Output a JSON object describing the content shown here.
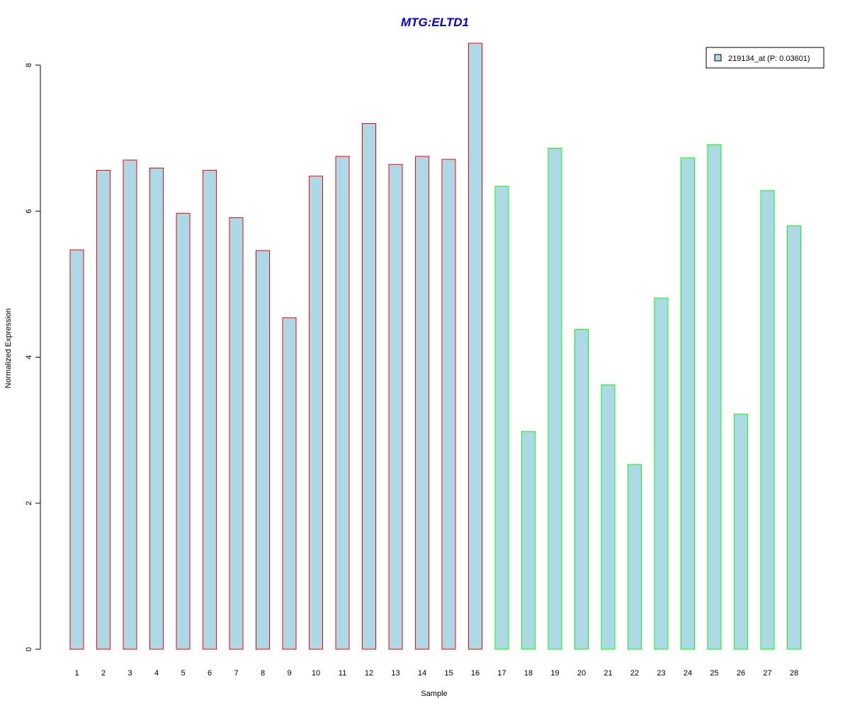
{
  "chart_data": {
    "type": "bar",
    "title": "MTG:ELTD1",
    "title_color": "#0000CC",
    "xlabel": "Sample",
    "ylabel": "Normalized Expression",
    "ylim": [
      0,
      8.3
    ],
    "yticks": [
      0,
      2,
      4,
      6,
      8
    ],
    "categories": [
      "1",
      "2",
      "3",
      "4",
      "5",
      "6",
      "7",
      "8",
      "9",
      "10",
      "11",
      "12",
      "13",
      "14",
      "15",
      "16",
      "17",
      "18",
      "19",
      "20",
      "21",
      "22",
      "23",
      "24",
      "25",
      "26",
      "27",
      "28"
    ],
    "values": [
      5.47,
      6.56,
      6.7,
      6.59,
      5.97,
      6.56,
      5.91,
      5.46,
      4.54,
      6.48,
      6.75,
      7.2,
      6.64,
      6.75,
      6.71,
      8.3,
      6.34,
      2.98,
      6.86,
      4.38,
      3.62,
      2.53,
      4.81,
      6.73,
      6.91,
      3.22,
      6.28,
      5.8
    ],
    "bar_fill": "#ADD8E6",
    "border_colors": [
      "#FF0000",
      "#FF0000",
      "#FF0000",
      "#FF0000",
      "#FF0000",
      "#FF0000",
      "#FF0000",
      "#FF0000",
      "#FF0000",
      "#FF0000",
      "#FF0000",
      "#FF0000",
      "#FF0000",
      "#FF0000",
      "#FF0000",
      "#FF0000",
      "#00FF00",
      "#00FF00",
      "#00FF00",
      "#00FF00",
      "#00FF00",
      "#00FF00",
      "#00FF00",
      "#00FF00",
      "#00FF00",
      "#00FF00",
      "#00FF00",
      "#00FF00"
    ],
    "legend": {
      "label": "219134_at (P: 0.03601)",
      "position": "top-right"
    },
    "grid": false
  }
}
